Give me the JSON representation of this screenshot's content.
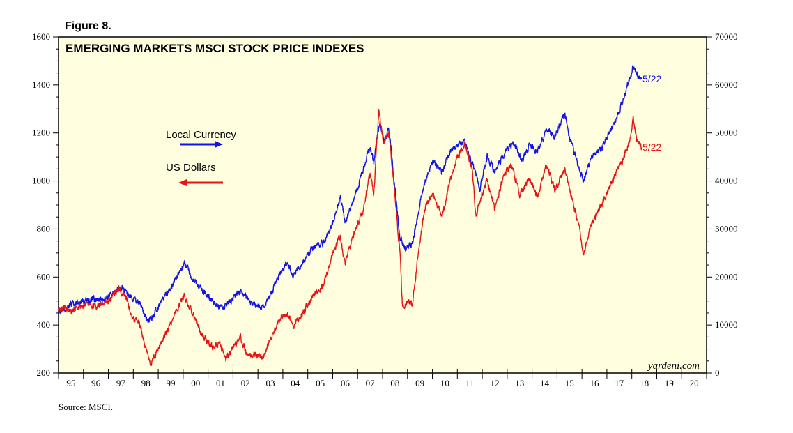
{
  "figure_label": "Figure 8.",
  "source": "Source: MSCI.",
  "watermark": "yardeni.com",
  "chart_data": {
    "type": "line",
    "title": "EMERGING MARKETS MSCI STOCK PRICE INDEXES",
    "x_tick_labels": [
      "95",
      "96",
      "97",
      "98",
      "99",
      "00",
      "01",
      "02",
      "03",
      "04",
      "05",
      "06",
      "07",
      "08",
      "09",
      "10",
      "11",
      "12",
      "13",
      "14",
      "15",
      "16",
      "17",
      "18",
      "19",
      "20"
    ],
    "x_range": [
      1995.0,
      2021.0
    ],
    "left_axis": {
      "range": [
        200,
        1600
      ],
      "ticks": [
        200,
        400,
        600,
        800,
        1000,
        1200,
        1400,
        1600
      ],
      "series": "US Dollars"
    },
    "right_axis": {
      "range": [
        0,
        70000
      ],
      "ticks": [
        0,
        10000,
        20000,
        30000,
        40000,
        50000,
        60000,
        70000
      ],
      "series": "Local Currency"
    },
    "legend": [
      {
        "name": "Local Currency",
        "color": "#1414e6",
        "direction": "right"
      },
      {
        "name": "US Dollars",
        "color": "#e61414",
        "direction": "left"
      }
    ],
    "end_label": "5/22",
    "series": [
      {
        "name": "Local Currency",
        "axis": "right",
        "color": "#1414e6",
        "end_label": "5/22",
        "points": [
          [
            1995.0,
            12500
          ],
          [
            1995.25,
            13500
          ],
          [
            1995.6,
            14500
          ],
          [
            1996.0,
            15000
          ],
          [
            1996.4,
            15300
          ],
          [
            1996.8,
            15500
          ],
          [
            1997.2,
            16500
          ],
          [
            1997.55,
            18000
          ],
          [
            1997.8,
            16000
          ],
          [
            1998.0,
            15500
          ],
          [
            1998.3,
            14500
          ],
          [
            1998.6,
            10500
          ],
          [
            1998.9,
            13000
          ],
          [
            1999.3,
            16000
          ],
          [
            1999.7,
            19500
          ],
          [
            2000.05,
            23000
          ],
          [
            2000.4,
            19500
          ],
          [
            2000.8,
            17000
          ],
          [
            2001.2,
            15000
          ],
          [
            2001.6,
            13500
          ],
          [
            2001.9,
            15000
          ],
          [
            2002.3,
            17000
          ],
          [
            2002.6,
            15500
          ],
          [
            2002.9,
            14000
          ],
          [
            2003.2,
            13500
          ],
          [
            2003.5,
            16000
          ],
          [
            2003.9,
            21000
          ],
          [
            2004.2,
            23000
          ],
          [
            2004.4,
            20500
          ],
          [
            2004.8,
            23000
          ],
          [
            2005.2,
            26000
          ],
          [
            2005.6,
            27000
          ],
          [
            2006.0,
            31000
          ],
          [
            2006.3,
            37000
          ],
          [
            2006.5,
            31500
          ],
          [
            2006.9,
            37000
          ],
          [
            2007.2,
            42000
          ],
          [
            2007.5,
            47000
          ],
          [
            2007.65,
            44000
          ],
          [
            2007.9,
            53000
          ],
          [
            2008.05,
            48000
          ],
          [
            2008.25,
            51000
          ],
          [
            2008.45,
            41000
          ],
          [
            2008.7,
            28000
          ],
          [
            2008.9,
            26000
          ],
          [
            2009.2,
            27000
          ],
          [
            2009.45,
            34000
          ],
          [
            2009.7,
            40000
          ],
          [
            2010.0,
            44000
          ],
          [
            2010.4,
            42000
          ],
          [
            2010.7,
            46000
          ],
          [
            2011.0,
            47500
          ],
          [
            2011.3,
            48000
          ],
          [
            2011.6,
            43500
          ],
          [
            2011.9,
            38500
          ],
          [
            2012.2,
            45000
          ],
          [
            2012.5,
            42000
          ],
          [
            2012.9,
            46000
          ],
          [
            2013.3,
            48000
          ],
          [
            2013.6,
            44000
          ],
          [
            2013.9,
            47500
          ],
          [
            2014.2,
            46000
          ],
          [
            2014.6,
            51000
          ],
          [
            2014.9,
            49000
          ],
          [
            2015.3,
            54000
          ],
          [
            2015.5,
            49000
          ],
          [
            2015.8,
            44000
          ],
          [
            2016.05,
            40000
          ],
          [
            2016.4,
            45000
          ],
          [
            2016.8,
            47000
          ],
          [
            2017.2,
            51000
          ],
          [
            2017.6,
            56000
          ],
          [
            2017.95,
            62000
          ],
          [
            2018.05,
            64000
          ],
          [
            2018.2,
            62000
          ],
          [
            2018.39,
            61500
          ]
        ]
      },
      {
        "name": "US Dollars",
        "axis": "left",
        "color": "#e61414",
        "end_label": "5/22",
        "points": [
          [
            1995.0,
            460
          ],
          [
            1995.25,
            475
          ],
          [
            1995.5,
            450
          ],
          [
            1995.8,
            480
          ],
          [
            1996.2,
            485
          ],
          [
            1996.6,
            480
          ],
          [
            1997.0,
            500
          ],
          [
            1997.4,
            550
          ],
          [
            1997.7,
            520
          ],
          [
            1997.95,
            430
          ],
          [
            1998.2,
            420
          ],
          [
            1998.5,
            300
          ],
          [
            1998.7,
            240
          ],
          [
            1998.9,
            280
          ],
          [
            1999.3,
            360
          ],
          [
            1999.7,
            450
          ],
          [
            2000.05,
            520
          ],
          [
            2000.4,
            440
          ],
          [
            2000.8,
            350
          ],
          [
            2001.2,
            310
          ],
          [
            2001.5,
            320
          ],
          [
            2001.72,
            250
          ],
          [
            2001.95,
            300
          ],
          [
            2002.3,
            345
          ],
          [
            2002.6,
            270
          ],
          [
            2002.9,
            280
          ],
          [
            2003.2,
            265
          ],
          [
            2003.5,
            340
          ],
          [
            2003.9,
            430
          ],
          [
            2004.2,
            445
          ],
          [
            2004.4,
            400
          ],
          [
            2004.8,
            450
          ],
          [
            2005.2,
            520
          ],
          [
            2005.6,
            560
          ],
          [
            2006.0,
            700
          ],
          [
            2006.3,
            770
          ],
          [
            2006.5,
            660
          ],
          [
            2006.9,
            800
          ],
          [
            2007.2,
            870
          ],
          [
            2007.5,
            1030
          ],
          [
            2007.65,
            950
          ],
          [
            2007.85,
            1290
          ],
          [
            2008.05,
            1150
          ],
          [
            2008.25,
            1200
          ],
          [
            2008.45,
            990
          ],
          [
            2008.7,
            700
          ],
          [
            2008.8,
            470
          ],
          [
            2009.0,
            500
          ],
          [
            2009.2,
            480
          ],
          [
            2009.45,
            720
          ],
          [
            2009.7,
            890
          ],
          [
            2010.0,
            950
          ],
          [
            2010.4,
            850
          ],
          [
            2010.7,
            1000
          ],
          [
            2011.0,
            1100
          ],
          [
            2011.3,
            1150
          ],
          [
            2011.6,
            1050
          ],
          [
            2011.75,
            850
          ],
          [
            2011.9,
            920
          ],
          [
            2012.2,
            1000
          ],
          [
            2012.5,
            880
          ],
          [
            2012.9,
            1040
          ],
          [
            2013.2,
            1060
          ],
          [
            2013.5,
            940
          ],
          [
            2013.9,
            1010
          ],
          [
            2014.2,
            930
          ],
          [
            2014.6,
            1070
          ],
          [
            2014.9,
            960
          ],
          [
            2015.3,
            1050
          ],
          [
            2015.6,
            930
          ],
          [
            2015.9,
            800
          ],
          [
            2016.05,
            690
          ],
          [
            2016.4,
            830
          ],
          [
            2016.8,
            900
          ],
          [
            2017.2,
            1000
          ],
          [
            2017.6,
            1080
          ],
          [
            2017.95,
            1180
          ],
          [
            2018.05,
            1270
          ],
          [
            2018.2,
            1170
          ],
          [
            2018.39,
            1140
          ]
        ]
      }
    ]
  }
}
